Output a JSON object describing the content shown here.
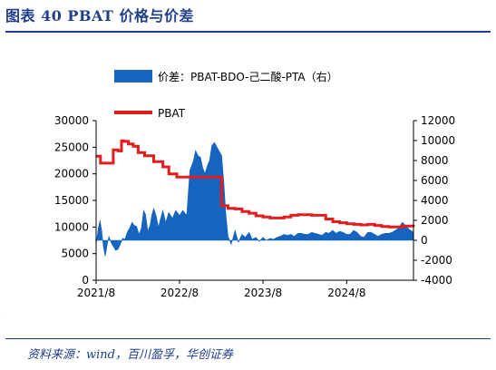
{
  "figure": {
    "title": "图表 40   PBAT 价格与价差",
    "source": "资料来源：wind，百川盈孚，华创证券",
    "side_mark": "·"
  },
  "colors": {
    "accent": "#1f3f8c",
    "spread_fill": "#1565c0",
    "pbat_line": "#e31c1c"
  },
  "chart_data": {
    "type": "area",
    "title": "",
    "xlabel": "",
    "ylabel": "",
    "ylabel_right": "",
    "x_ticks": [
      "2021/8",
      "2022/8",
      "2023/8",
      "2024/8"
    ],
    "x_range": [
      "2021-08-01",
      "2025-05-20"
    ],
    "ylim_left": [
      0,
      30000
    ],
    "y_ticks_left": [
      "0",
      "5000",
      "10000",
      "15000",
      "20000",
      "25000",
      "30000"
    ],
    "ylim_right": [
      -4000,
      12000
    ],
    "y_ticks_right": [
      "-4000",
      "-2000",
      "0",
      "2000",
      "4000",
      "6000",
      "8000",
      "10000",
      "12000"
    ],
    "legend_placement": "top",
    "grid": false,
    "series": [
      {
        "name": "价差：PBAT-BDO-己二酸-PTA（右）",
        "type": "area",
        "axis": "right",
        "baseline": 0,
        "color": "#1565c0",
        "x": [
          "2021-08-01",
          "2021-08-10",
          "2021-08-18",
          "2021-08-25",
          "2021-09-02",
          "2021-09-10",
          "2021-09-18",
          "2021-09-26",
          "2021-10-05",
          "2021-10-15",
          "2021-10-25",
          "2021-11-05",
          "2021-11-15",
          "2021-11-25",
          "2021-12-05",
          "2021-12-15",
          "2021-12-25",
          "2022-01-05",
          "2022-01-15",
          "2022-01-25",
          "2022-02-05",
          "2022-02-15",
          "2022-02-25",
          "2022-03-05",
          "2022-03-15",
          "2022-03-25",
          "2022-04-01",
          "2022-04-10",
          "2022-04-20",
          "2022-05-01",
          "2022-05-10",
          "2022-05-20",
          "2022-06-01",
          "2022-06-15",
          "2022-07-01",
          "2022-07-15",
          "2022-08-01",
          "2022-08-15",
          "2022-09-01",
          "2022-09-15",
          "2022-10-01",
          "2022-10-10",
          "2022-10-20",
          "2022-11-01",
          "2022-11-10",
          "2022-11-20",
          "2022-12-01",
          "2022-12-10",
          "2022-12-20",
          "2023-01-01",
          "2023-01-10",
          "2023-01-20",
          "2023-02-01",
          "2023-02-10",
          "2023-02-20",
          "2023-03-01",
          "2023-03-15",
          "2023-04-01",
          "2023-04-15",
          "2023-05-01",
          "2023-05-15",
          "2023-06-01",
          "2023-06-15",
          "2023-07-01",
          "2023-07-15",
          "2023-08-01",
          "2023-08-15",
          "2023-09-01",
          "2023-09-15",
          "2023-10-01",
          "2023-10-15",
          "2023-11-01",
          "2023-11-15",
          "2023-12-01",
          "2023-12-15",
          "2024-01-01",
          "2024-01-15",
          "2024-02-01",
          "2024-02-15",
          "2024-03-01",
          "2024-03-15",
          "2024-04-01",
          "2024-04-15",
          "2024-05-01",
          "2024-05-15",
          "2024-06-01",
          "2024-06-15",
          "2024-07-01",
          "2024-07-15",
          "2024-08-01",
          "2024-08-15",
          "2024-09-01",
          "2024-09-15",
          "2024-10-01",
          "2024-10-15",
          "2024-11-01",
          "2024-11-15",
          "2024-12-01",
          "2024-12-15",
          "2025-01-01",
          "2025-01-15",
          "2025-02-01",
          "2025-02-15",
          "2025-03-01",
          "2025-03-15",
          "2025-04-01",
          "2025-04-15",
          "2025-05-01",
          "2025-05-20"
        ],
        "values": [
          -500,
          1200,
          2000,
          1000,
          -700,
          -1600,
          -500,
          400,
          -200,
          -600,
          -1000,
          -900,
          -400,
          200,
          100,
          800,
          1200,
          1800,
          1500,
          1400,
          600,
          1200,
          3000,
          2600,
          900,
          1500,
          2500,
          3200,
          2500,
          1300,
          2200,
          3000,
          1800,
          2800,
          2200,
          3000,
          2500,
          3000,
          2500,
          7000,
          8000,
          9000,
          8500,
          8300,
          7300,
          6700,
          7500,
          8000,
          9500,
          9800,
          9400,
          9000,
          8500,
          6000,
          2500,
          400,
          -400,
          1000,
          -200,
          600,
          300,
          800,
          100,
          300,
          -100,
          300,
          0,
          200,
          100,
          300,
          400,
          600,
          500,
          600,
          400,
          700,
          700,
          600,
          600,
          800,
          700,
          600,
          500,
          800,
          700,
          1000,
          700,
          900,
          800,
          600,
          600,
          1000,
          800,
          400,
          300,
          800,
          800,
          600,
          400,
          600,
          700,
          700,
          800,
          1000,
          1200,
          1800,
          1500,
          1100,
          800
        ]
      },
      {
        "name": "PBAT",
        "type": "line",
        "axis": "left",
        "color": "#e31c1c",
        "x": [
          "2021-08-01",
          "2021-08-20",
          "2021-09-20",
          "2021-10-15",
          "2021-11-05",
          "2021-11-20",
          "2021-12-01",
          "2021-12-20",
          "2022-01-10",
          "2022-02-01",
          "2022-03-01",
          "2022-03-20",
          "2022-04-10",
          "2022-05-01",
          "2022-05-20",
          "2022-06-15",
          "2022-07-01",
          "2022-07-20",
          "2022-08-15",
          "2022-09-15",
          "2022-10-15",
          "2022-11-15",
          "2022-12-15",
          "2023-01-10",
          "2023-01-20",
          "2023-02-01",
          "2023-03-01",
          "2023-04-01",
          "2023-05-01",
          "2023-06-01",
          "2023-07-01",
          "2023-08-01",
          "2023-09-01",
          "2023-10-01",
          "2023-11-01",
          "2023-12-01",
          "2024-01-01",
          "2024-02-01",
          "2024-03-01",
          "2024-04-01",
          "2024-05-01",
          "2024-06-01",
          "2024-07-01",
          "2024-08-01",
          "2024-09-01",
          "2024-10-01",
          "2024-11-01",
          "2024-12-01",
          "2025-01-01",
          "2025-02-01",
          "2025-03-01",
          "2025-04-01",
          "2025-05-20"
        ],
        "values": [
          23300,
          22000,
          22000,
          24500,
          24300,
          26200,
          26100,
          25600,
          25200,
          24000,
          23400,
          23400,
          22300,
          22300,
          21300,
          20000,
          20000,
          19400,
          19400,
          19400,
          19400,
          19400,
          19400,
          19400,
          19400,
          14000,
          13500,
          13400,
          12900,
          12600,
          12100,
          11900,
          11700,
          11700,
          11900,
          12200,
          12300,
          12300,
          12200,
          12200,
          11500,
          11000,
          10800,
          10600,
          10500,
          10400,
          10500,
          10300,
          10100,
          10000,
          10000,
          10200,
          10000
        ]
      }
    ]
  }
}
